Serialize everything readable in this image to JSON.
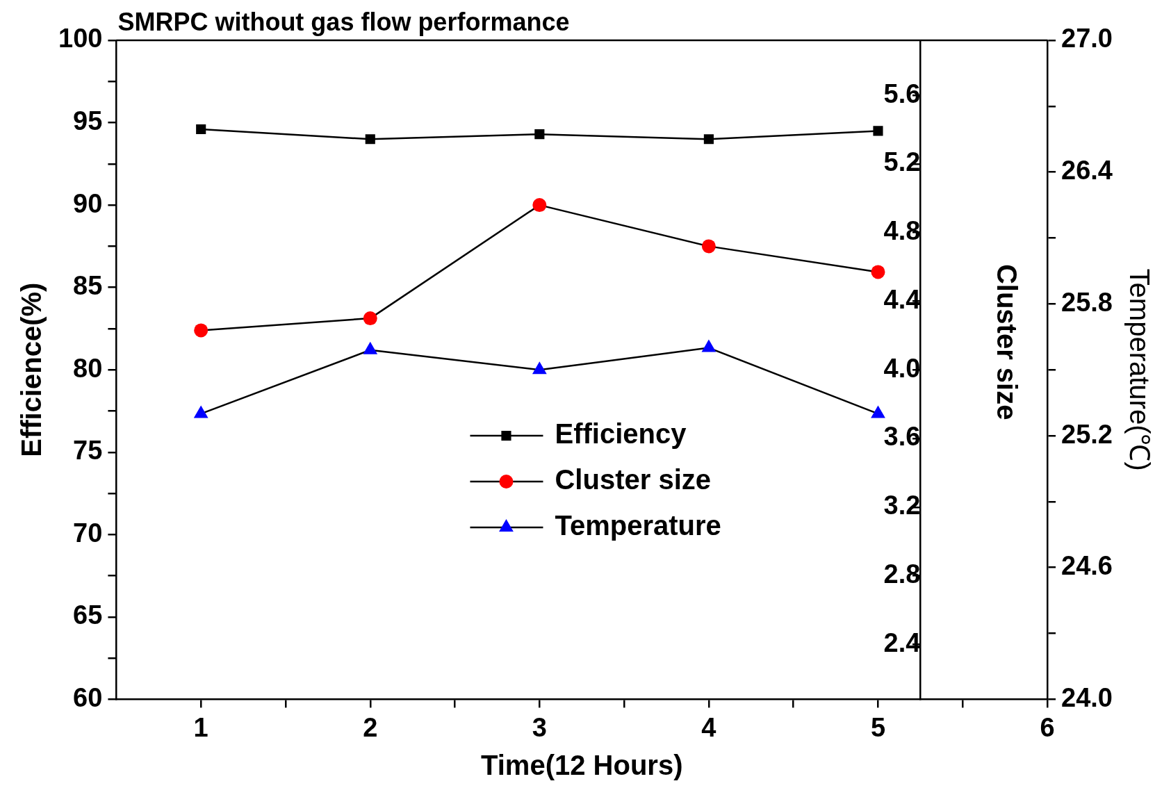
{
  "chart_data": {
    "type": "line",
    "title": "SMRPC without gas flow performance",
    "xlabel": "Time(12 Hours)",
    "ylabel": "Efficience(%)",
    "y2label": "Cluster size",
    "y3label": "Temperature(℃)",
    "x": [
      1,
      2,
      3,
      4,
      5
    ],
    "series": [
      {
        "name": "Efficiency",
        "color": "#000000",
        "marker": "square",
        "values": [
          94.6,
          94.0,
          94.3,
          94.0,
          94.5
        ]
      },
      {
        "name": "Cluster size",
        "color": "#ff0000",
        "marker": "circle",
        "axis": "y2",
        "values": [
          4.23,
          4.3,
          4.96,
          4.72,
          4.57
        ]
      },
      {
        "name": "Temperature",
        "color": "#0000ff",
        "marker": "triangle",
        "axis": "y3",
        "values": [
          25.3,
          25.59,
          25.5,
          25.6,
          25.3
        ]
      }
    ],
    "xlim": [
      0.5,
      6
    ],
    "xticks": [
      1,
      {
        "value": 1.5,
        "label": null
      },
      2,
      {
        "value": 2.5,
        "label": null
      },
      3,
      {
        "value": 3.5,
        "label": null
      },
      4,
      {
        "value": 4.5,
        "label": null
      },
      5,
      {
        "value": 5.5,
        "label": null
      },
      6
    ],
    "ylim": [
      60,
      100
    ],
    "yticks": [
      60,
      {
        "value": 62.5,
        "label": null
      },
      65,
      {
        "value": 67.5,
        "label": null
      },
      70,
      {
        "value": 72.5,
        "label": null
      },
      75,
      {
        "value": 77.5,
        "label": null
      },
      80,
      {
        "value": 82.5,
        "label": null
      },
      85,
      {
        "value": 87.5,
        "label": null
      },
      90,
      {
        "value": 92.5,
        "label": null
      },
      95,
      {
        "value": 97.5,
        "label": null
      },
      100
    ],
    "y2lim": [
      2.08,
      5.92
    ],
    "y2ticks": [
      2.4,
      2.8,
      3.2,
      3.6,
      {
        "value": 4.0,
        "label": "4.0"
      },
      4.4,
      4.8,
      5.2,
      5.6
    ],
    "y3lim": [
      24,
      27
    ],
    "y3ticks": [
      {
        "value": 24,
        "label": "24.0"
      },
      {
        "value": 24.3,
        "label": null
      },
      24.6,
      {
        "value": 24.9,
        "label": null
      },
      25.2,
      {
        "value": 25.5,
        "label": null
      },
      25.8,
      {
        "value": 26.1,
        "label": null
      },
      26.4,
      {
        "value": 26.7,
        "label": null
      },
      {
        "value": 27,
        "label": "27.0"
      }
    ],
    "legend": "center",
    "grid": false
  }
}
